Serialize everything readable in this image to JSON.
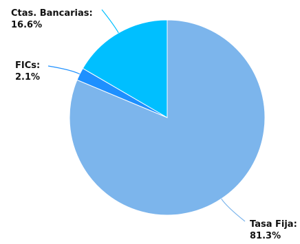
{
  "chart_data": {
    "type": "pie",
    "slices": [
      {
        "label": "Tasa Fija:",
        "value": 81.3,
        "value_text": "81.3%",
        "color": "#7cb5ec"
      },
      {
        "label": "FICs:",
        "value": 2.1,
        "value_text": "2.1%",
        "color": "#1e90ff"
      },
      {
        "label": "Ctas. Bancarias:",
        "value": 16.6,
        "value_text": "16.6%",
        "color": "#00bfff"
      }
    ],
    "start_angle": "12 o'clock",
    "direction": "clockwise",
    "legend": "none",
    "data_labels": "outside-with-leader-lines"
  }
}
